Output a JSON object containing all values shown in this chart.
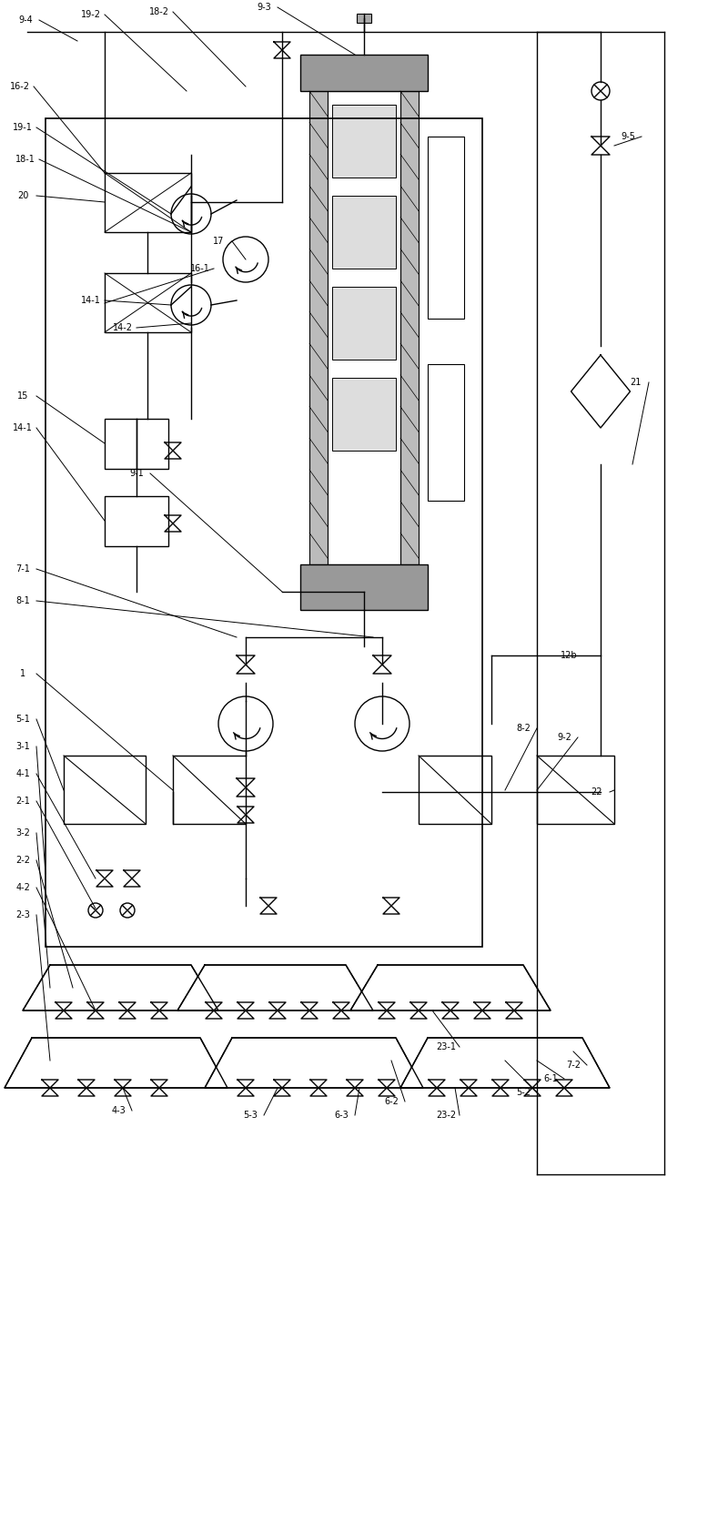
{
  "fig_width": 8.0,
  "fig_height": 16.62,
  "bg_color": "#ffffff",
  "line_color": "#000000",
  "lw": 1.0
}
